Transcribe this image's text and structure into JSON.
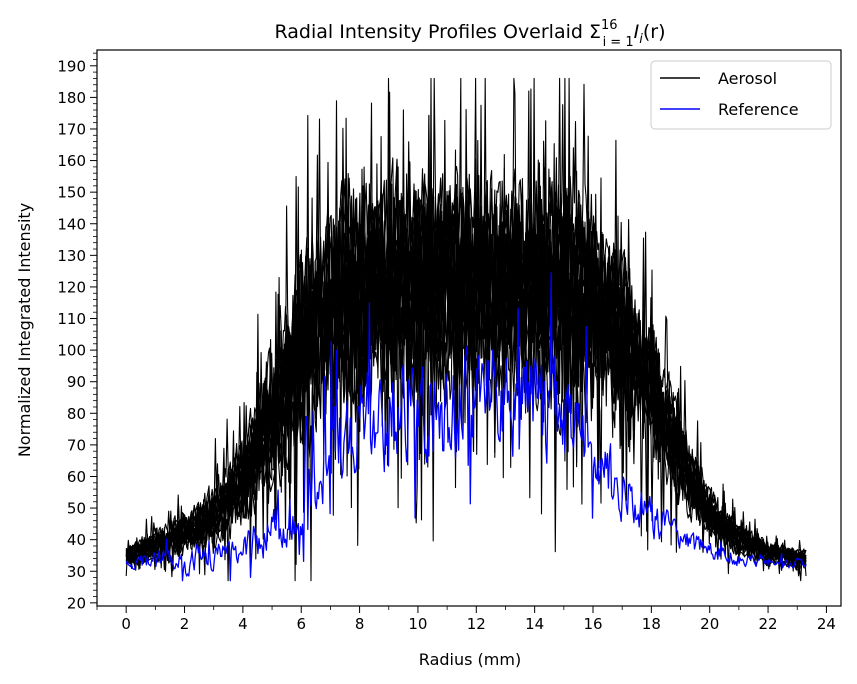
{
  "chart_data": {
    "type": "line",
    "title": "Radial Intensity Profiles Overlaid",
    "title_math": {
      "sigma": "Σ",
      "sup": "16",
      "sub": "i = 1",
      "term": "I",
      "term_sub": "i",
      "arg": "(r)"
    },
    "xlabel": "Radius (mm)",
    "ylabel": "Normalized Integrated Intensity",
    "xlim": [
      -1.0,
      24.5
    ],
    "ylim": [
      19.0,
      195.0
    ],
    "xticks": [
      "0",
      "2",
      "4",
      "6",
      "8",
      "10",
      "12",
      "14",
      "16",
      "18",
      "20",
      "22",
      "24"
    ],
    "yticks": [
      "20",
      "30",
      "40",
      "50",
      "60",
      "70",
      "80",
      "90",
      "100",
      "110",
      "120",
      "130",
      "140",
      "150",
      "160",
      "170",
      "180",
      "190"
    ],
    "x_range": [
      0.0,
      23.3
    ],
    "grid": false,
    "legend": {
      "position": "top-right",
      "entries": [
        {
          "label": "Aerosol",
          "color": "#000000"
        },
        {
          "label": "Reference",
          "color": "#0000ff"
        }
      ]
    },
    "series": [
      {
        "name": "Aerosol",
        "color": "#000000",
        "profile_count": 16,
        "envelope_x": [
          0,
          1,
          2,
          3,
          4,
          5,
          6,
          7,
          8,
          9,
          10,
          11,
          12,
          13,
          14,
          15,
          16,
          17,
          18,
          19,
          20,
          21,
          22,
          23,
          23.3
        ],
        "envelope_mean": [
          35,
          38,
          42,
          47,
          58,
          78,
          100,
          112,
          118,
          120,
          120,
          120,
          120,
          120,
          120,
          118,
          115,
          105,
          88,
          65,
          48,
          40,
          36,
          34,
          34
        ],
        "envelope_spread": [
          3,
          5,
          6,
          10,
          14,
          24,
          30,
          32,
          34,
          34,
          34,
          34,
          34,
          34,
          34,
          34,
          32,
          26,
          20,
          14,
          8,
          5,
          4,
          3,
          3
        ]
      },
      {
        "name": "Reference",
        "color": "#0000ff",
        "profile_count": 1,
        "envelope_x": [
          0,
          1,
          2,
          3,
          4,
          5,
          6,
          7,
          8,
          9,
          10,
          11,
          12,
          13,
          14,
          15,
          16,
          17,
          18,
          19,
          20,
          21,
          22,
          23,
          23.3
        ],
        "envelope_mean": [
          33,
          35,
          35,
          36,
          40,
          45,
          55,
          75,
          85,
          88,
          90,
          90,
          90,
          90,
          90,
          85,
          75,
          60,
          50,
          42,
          38,
          35,
          34,
          33,
          33
        ],
        "envelope_spread": [
          2,
          5,
          6,
          6,
          7,
          10,
          14,
          18,
          22,
          24,
          24,
          24,
          24,
          24,
          24,
          22,
          16,
          12,
          9,
          6,
          4,
          3,
          3,
          2,
          2
        ]
      }
    ]
  }
}
